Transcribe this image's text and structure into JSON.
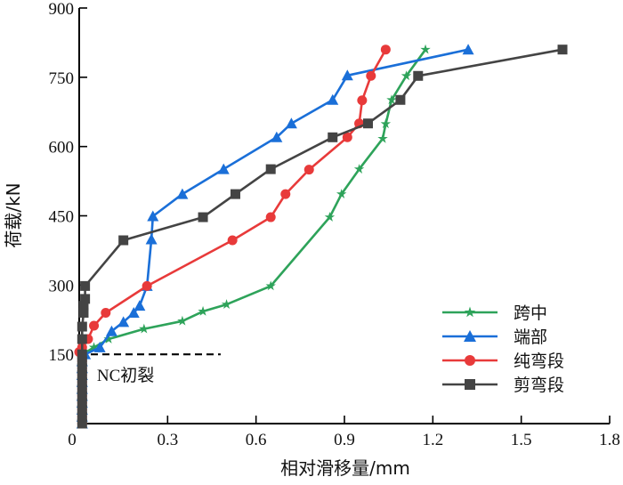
{
  "chart_data": {
    "type": "line",
    "title": "",
    "xlabel": "相对滑移量/mm",
    "ylabel": "荷载/kN",
    "xlim": [
      0,
      1.8
    ],
    "ylim": [
      0,
      900
    ],
    "xticks": [
      0,
      0.3,
      0.6,
      0.9,
      1.2,
      1.5,
      1.8
    ],
    "xtick_labels": [
      "0",
      "0.3",
      "0.6",
      "0.9",
      "1.2",
      "1.5",
      "1.8"
    ],
    "yticks": [
      150,
      300,
      450,
      600,
      750,
      900
    ],
    "ytick_labels": [
      "150",
      "300",
      "450",
      "600",
      "750",
      "900"
    ],
    "grid": false,
    "legend_position": "bottom-right",
    "annotation": {
      "text": "NC初裂",
      "load": 150,
      "x_range": [
        0,
        0.48
      ]
    },
    "series": [
      {
        "name": "跨中",
        "color": "#2ea35a",
        "marker": "star",
        "points": [
          [
            0.01,
            0
          ],
          [
            0.01,
            15
          ],
          [
            0.01,
            30
          ],
          [
            0.01,
            45
          ],
          [
            0.01,
            60
          ],
          [
            0.01,
            75
          ],
          [
            0.01,
            90
          ],
          [
            0.01,
            105
          ],
          [
            0.01,
            120
          ],
          [
            0.01,
            135
          ],
          [
            0.01,
            150
          ],
          [
            0.05,
            165
          ],
          [
            0.1,
            183
          ],
          [
            0.22,
            205
          ],
          [
            0.35,
            222
          ],
          [
            0.42,
            243
          ],
          [
            0.5,
            258
          ],
          [
            0.65,
            298
          ],
          [
            0.85,
            447
          ],
          [
            0.89,
            497
          ],
          [
            0.95,
            551
          ],
          [
            1.03,
            617
          ],
          [
            1.04,
            649
          ],
          [
            1.06,
            701
          ],
          [
            1.11,
            753
          ],
          [
            1.175,
            810
          ]
        ]
      },
      {
        "name": "端部",
        "color": "#1a6fd8",
        "marker": "triangle",
        "points": [
          [
            0.01,
            0
          ],
          [
            0.01,
            15
          ],
          [
            0.01,
            30
          ],
          [
            0.01,
            45
          ],
          [
            0.01,
            60
          ],
          [
            0.01,
            75
          ],
          [
            0.01,
            90
          ],
          [
            0.01,
            105
          ],
          [
            0.01,
            120
          ],
          [
            0.01,
            135
          ],
          [
            0.02,
            150
          ],
          [
            0.07,
            165
          ],
          [
            0.11,
            200
          ],
          [
            0.15,
            220
          ],
          [
            0.185,
            240
          ],
          [
            0.205,
            255
          ],
          [
            0.23,
            298
          ],
          [
            0.245,
            399
          ],
          [
            0.25,
            449
          ],
          [
            0.35,
            497
          ],
          [
            0.49,
            551
          ],
          [
            0.67,
            620
          ],
          [
            0.72,
            650
          ],
          [
            0.86,
            701
          ],
          [
            0.91,
            754
          ],
          [
            1.32,
            810
          ]
        ]
      },
      {
        "name": "纯弯段",
        "color": "#e83a3a",
        "marker": "circle",
        "points": [
          [
            0.01,
            0
          ],
          [
            0.01,
            15
          ],
          [
            0.01,
            30
          ],
          [
            0.01,
            45
          ],
          [
            0.01,
            60
          ],
          [
            0.01,
            75
          ],
          [
            0.01,
            90
          ],
          [
            0.01,
            105
          ],
          [
            0.01,
            120
          ],
          [
            0.01,
            135
          ],
          [
            0.0,
            155
          ],
          [
            0.01,
            165
          ],
          [
            0.03,
            183
          ],
          [
            0.05,
            212
          ],
          [
            0.09,
            240
          ],
          [
            0.23,
            298
          ],
          [
            0.52,
            397
          ],
          [
            0.65,
            447
          ],
          [
            0.7,
            497
          ],
          [
            0.78,
            550
          ],
          [
            0.91,
            620
          ],
          [
            0.95,
            650
          ],
          [
            0.96,
            700
          ],
          [
            0.99,
            753
          ],
          [
            1.04,
            810
          ]
        ]
      },
      {
        "name": "剪弯段",
        "color": "#444444",
        "marker": "square",
        "points": [
          [
            0.01,
            0
          ],
          [
            0.01,
            15
          ],
          [
            0.01,
            30
          ],
          [
            0.01,
            45
          ],
          [
            0.01,
            60
          ],
          [
            0.01,
            75
          ],
          [
            0.01,
            90
          ],
          [
            0.01,
            105
          ],
          [
            0.01,
            120
          ],
          [
            0.01,
            135
          ],
          [
            0.01,
            150
          ],
          [
            0.01,
            183
          ],
          [
            0.01,
            210
          ],
          [
            0.015,
            240
          ],
          [
            0.015,
            255
          ],
          [
            0.02,
            270
          ],
          [
            0.02,
            298
          ],
          [
            0.15,
            397
          ],
          [
            0.42,
            447
          ],
          [
            0.53,
            497
          ],
          [
            0.65,
            551
          ],
          [
            0.86,
            620
          ],
          [
            0.98,
            650
          ],
          [
            1.09,
            701
          ],
          [
            1.15,
            753
          ],
          [
            1.64,
            810
          ]
        ]
      }
    ]
  }
}
